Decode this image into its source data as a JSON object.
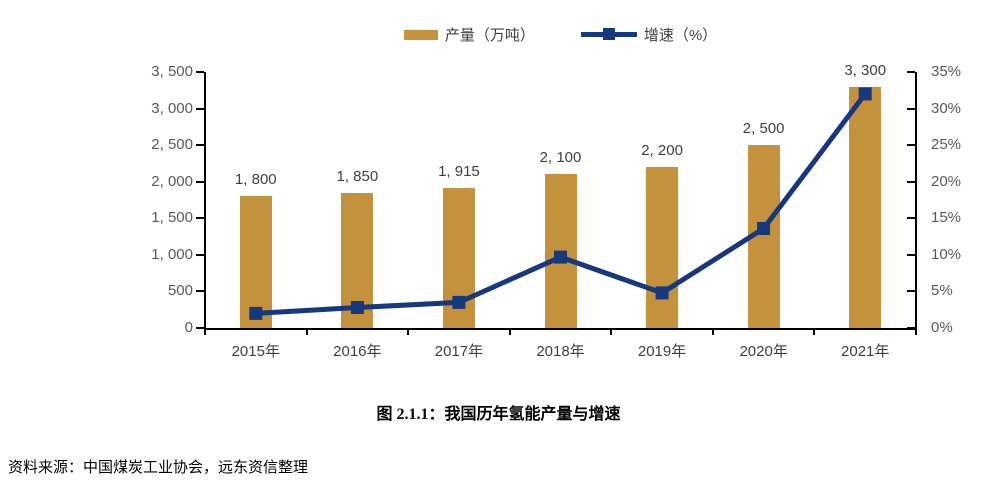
{
  "legend": {
    "items": [
      {
        "label": "产量（万吨）",
        "swatch": "bar",
        "color": "#C4923C"
      },
      {
        "label": "增速（%）",
        "swatch": "line-with-square-marker",
        "color": "#16387C"
      }
    ]
  },
  "chart_data": {
    "type": "bar+line",
    "categories": [
      "2015年",
      "2016年",
      "2017年",
      "2018年",
      "2019年",
      "2020年",
      "2021年"
    ],
    "series": [
      {
        "name": "产量（万吨）",
        "type": "bar",
        "axis": "left",
        "color": "#C4923C",
        "values": [
          1800,
          1850,
          1915,
          2100,
          2200,
          2500,
          3300
        ],
        "labels": [
          "1, 800",
          "1, 850",
          "1, 915",
          "2, 100",
          "2, 200",
          "2, 500",
          "3, 300"
        ]
      },
      {
        "name": "增速（%）",
        "type": "line",
        "axis": "right",
        "color": "#16387C",
        "marker": "square",
        "values": [
          2.0,
          2.8,
          3.5,
          9.7,
          4.8,
          13.6,
          32.0
        ]
      }
    ],
    "left_axis": {
      "min": 0,
      "max": 3500,
      "step": 500,
      "tick_labels": [
        "0",
        "500",
        "1, 000",
        "1, 500",
        "2, 000",
        "2, 500",
        "3, 000",
        "3, 500"
      ]
    },
    "right_axis": {
      "min": 0,
      "max": 35,
      "step": 5,
      "tick_labels": [
        "0%",
        "5%",
        "10%",
        "15%",
        "20%",
        "25%",
        "30%",
        "35%"
      ]
    },
    "grid": false,
    "legend_position": "top-center",
    "background": "#ffffff",
    "axis_color": "#000000",
    "tick_label_color": "#595959",
    "data_label_color": "#3f3f3f"
  },
  "caption": {
    "text": "图 2.1.1：我国历年氢能产量与增速"
  },
  "source": {
    "text": "资料来源：中国煤炭工业协会，远东资信整理"
  }
}
